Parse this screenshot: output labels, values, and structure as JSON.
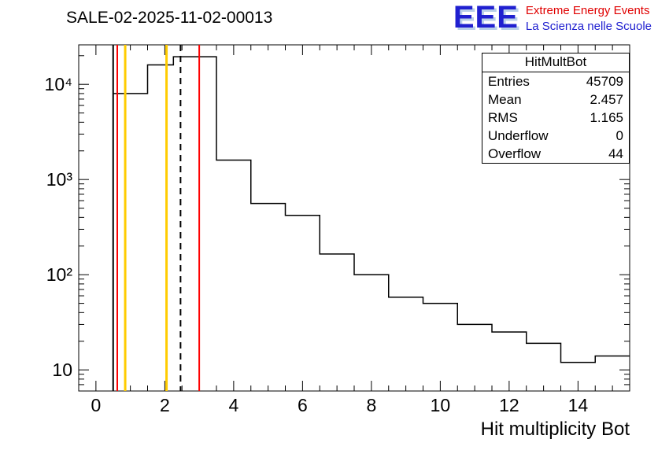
{
  "header": {
    "title": "SALE-02-2025-11-02-00013"
  },
  "logo": {
    "acronym": "EEE",
    "line1": "Extreme Energy Events",
    "line2": "La Scienza nelle Scuole",
    "blue": "#2020d0",
    "red": "#e00000"
  },
  "stats": {
    "title": "HitMultBot",
    "rows": [
      {
        "label": "Entries",
        "value": "45709"
      },
      {
        "label": "Mean",
        "value": "2.457"
      },
      {
        "label": "RMS",
        "value": "1.165"
      },
      {
        "label": "Underflow",
        "value": "0"
      },
      {
        "label": "Overflow",
        "value": "44"
      }
    ]
  },
  "chart_data": {
    "type": "bar",
    "title": "SALE-02-2025-11-02-00013",
    "xlabel": "Hit multiplicity Bot",
    "ylabel": "",
    "y_scale": "log",
    "grid": "off",
    "x_range": [
      -0.5,
      15.5
    ],
    "y_range": [
      6,
      26000
    ],
    "x_tick_step_minor": 0.5,
    "x_tick_values": [
      0,
      2,
      4,
      6,
      8,
      10,
      12,
      14
    ],
    "x_tick_labels": [
      "0",
      "2",
      "4",
      "6",
      "8",
      "10",
      "12",
      "14"
    ],
    "y_tick_values": [
      10,
      100,
      1000,
      10000
    ],
    "y_tick_labels": [
      "10",
      "10²",
      "10³",
      "10⁴"
    ],
    "histogram_color": "#000000",
    "bins": [
      [
        0.5,
        1.5,
        8000
      ],
      [
        1.5,
        2.25,
        16000
      ],
      [
        2.25,
        3.5,
        19500
      ],
      [
        3.5,
        4.5,
        1600
      ],
      [
        4.5,
        5.5,
        560
      ],
      [
        5.5,
        6.5,
        420
      ],
      [
        6.5,
        7.5,
        165
      ],
      [
        7.5,
        8.5,
        100
      ],
      [
        8.5,
        9.5,
        58
      ],
      [
        9.5,
        10.5,
        50
      ],
      [
        10.5,
        11.5,
        30
      ],
      [
        11.5,
        12.5,
        25
      ],
      [
        12.5,
        13.5,
        19
      ],
      [
        13.5,
        14.5,
        12
      ],
      [
        14.5,
        15.5,
        14
      ]
    ],
    "cut_lines": [
      {
        "x": 0.5,
        "color": "#000000",
        "style": "solid",
        "width": 2
      },
      {
        "x": 0.62,
        "color": "#ff0000",
        "style": "solid",
        "width": 2
      },
      {
        "x": 0.85,
        "color": "#ffcc00",
        "style": "solid",
        "width": 3
      },
      {
        "x": 2.05,
        "color": "#ffcc00",
        "style": "solid",
        "width": 3
      },
      {
        "x": 2.457,
        "color": "#000000",
        "style": "dashed",
        "width": 2
      },
      {
        "x": 3.0,
        "color": "#ff0000",
        "style": "solid",
        "width": 2
      }
    ]
  }
}
